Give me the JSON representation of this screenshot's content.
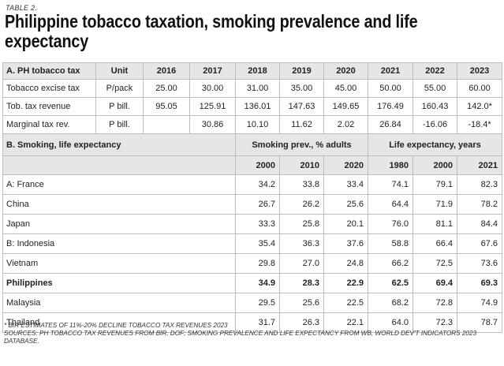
{
  "table_label": "TABLE 2.",
  "title": "Philippine tobacco taxation, smoking prevalence and life expectancy",
  "section_a": {
    "header": [
      "A. PH tobacco tax",
      "Unit",
      "2016",
      "2017",
      "2018",
      "2019",
      "2020",
      "2021",
      "2022",
      "2023"
    ],
    "rows": [
      [
        "Tobacco excise tax",
        "P/pack",
        "25.00",
        "30.00",
        "31.00",
        "35.00",
        "45.00",
        "50.00",
        "55.00",
        "60.00"
      ],
      [
        "Tob. tax revenue",
        "P bill.",
        "95.05",
        "125.91",
        "136.01",
        "147.63",
        "149.65",
        "176.49",
        "160.43",
        "142.0*"
      ],
      [
        "Marginal tax rev.",
        "P bill.",
        "",
        "30.86",
        "10.10",
        "11.62",
        "2.02",
        "26.84",
        "-16.06",
        "-18.4*"
      ]
    ]
  },
  "section_b": {
    "title": "B. Smoking, life expectancy",
    "group_smoking": "Smoking prev., % adults",
    "group_life": "Life expectancy, years",
    "years": [
      "2000",
      "2010",
      "2020",
      "1980",
      "2000",
      "2021"
    ],
    "rows": [
      [
        "A: France",
        "34.2",
        "33.8",
        "33.4",
        "74.1",
        "79.1",
        "82.3"
      ],
      [
        "China",
        "26.7",
        "26.2",
        "25.6",
        "64.4",
        "71.9",
        "78.2"
      ],
      [
        "Japan",
        "33.3",
        "25.8",
        "20.1",
        "76.0",
        "81.1",
        "84.4"
      ],
      [
        "B: Indonesia",
        "35.4",
        "36.3",
        "37.6",
        "58.8",
        "66.4",
        "67.6"
      ],
      [
        "Vietnam",
        "29.8",
        "27.0",
        "24.8",
        "66.2",
        "72.5",
        "73.6"
      ],
      [
        "Philippines",
        "34.9",
        "28.3",
        "22.9",
        "62.5",
        "69.4",
        "69.3"
      ],
      [
        "Malaysia",
        "29.5",
        "25.6",
        "22.5",
        "68.2",
        "72.8",
        "74.9"
      ],
      [
        "Thailand",
        "31.7",
        "26.3",
        "22.1",
        "64.0",
        "72.3",
        "78.7"
      ]
    ]
  },
  "notes": [
    "* BIR ESTIMATES OF 11%-20% DECLINE TOBACCO TAX REVENUES 2023",
    "SOURCES: PH TOBACCO TAX REVENUES FROM BIR, DOF; SMOKING PREVALENCE AND LIFE EXPECTANCY FROM WB, WORLD DEV'T INDICATORS 2023 DATABASE."
  ]
}
